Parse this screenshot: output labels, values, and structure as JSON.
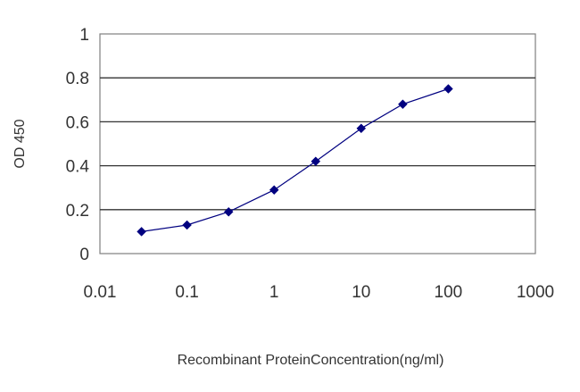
{
  "chart_data": {
    "type": "line",
    "title": "",
    "xlabel": "Recombinant ProteinConcentration(ng/ml)",
    "ylabel": "OD 450",
    "xscale": "log",
    "xlim": [
      0.01,
      1000
    ],
    "ylim": [
      0,
      1
    ],
    "x_ticks": [
      "0.01",
      "0.1",
      "1",
      "10",
      "100",
      "1000"
    ],
    "y_ticks": [
      "0",
      "0.2",
      "0.4",
      "0.6",
      "0.8",
      "1"
    ],
    "grid": "horizontal",
    "legend": "none",
    "series": [
      {
        "color": "#000080",
        "marker": "diamond",
        "x": [
          0.03,
          0.1,
          0.3,
          1,
          3,
          10,
          30,
          100
        ],
        "y": [
          0.1,
          0.13,
          0.19,
          0.29,
          0.42,
          0.57,
          0.68,
          0.75
        ]
      }
    ]
  }
}
